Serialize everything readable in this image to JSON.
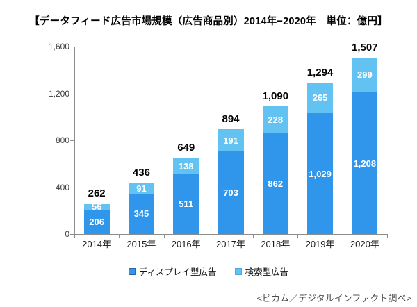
{
  "title": "【データフィード広告市場規模（広告商品別）2014年−2020年　単位：億円】",
  "footer": "<ビカム／デジタルインファクト調べ>",
  "colors": {
    "display_bar": "#2f96ec",
    "search_bar": "#62c2f2",
    "display_swatch_border": "#2b66ae",
    "search_swatch_border": "#4fa8d8",
    "axis": "#8c8c8c",
    "bar_label_text": "#ffffff",
    "total_label_text": "#000000"
  },
  "chart_data": {
    "type": "bar",
    "stacked": true,
    "title": "データフィード広告市場規模（広告商品別）2014年−2020年",
    "unit": "億円",
    "categories": [
      "2014年",
      "2015年",
      "2016年",
      "2017年",
      "2018年",
      "2019年",
      "2020年"
    ],
    "series": [
      {
        "name": "ディスプレイ型広告",
        "color": "#2f96ec",
        "border": "#2b66ae",
        "values": [
          206,
          345,
          511,
          703,
          862,
          1029,
          1208
        ]
      },
      {
        "name": "検索型広告",
        "color": "#62c2f2",
        "border": "#4fa8d8",
        "values": [
          56,
          91,
          138,
          191,
          228,
          265,
          299
        ]
      }
    ],
    "totals": [
      262,
      436,
      649,
      894,
      1090,
      1294,
      1507
    ],
    "ylim": [
      0,
      1600
    ],
    "yticks": [
      0,
      400,
      800,
      1200,
      1600
    ],
    "grid": false,
    "legend_position": "bottom"
  }
}
